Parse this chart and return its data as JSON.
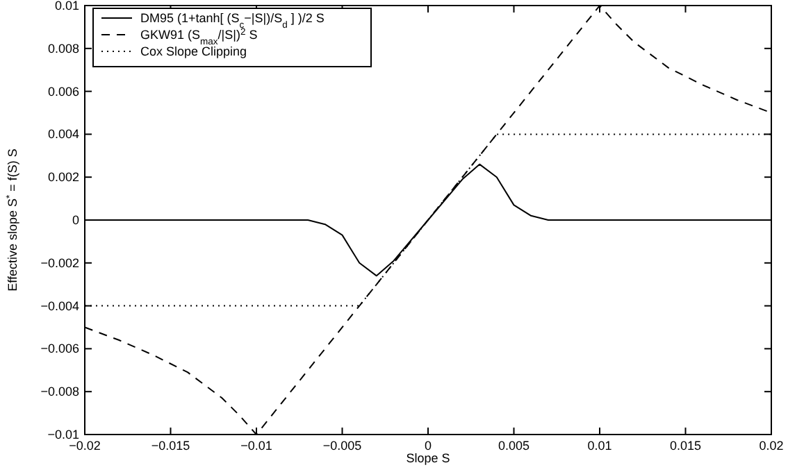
{
  "chart_data": {
    "type": "line",
    "xlabel": "Slope S",
    "ylabel": "Effective slope S$^{*}$ = f(S) S",
    "xlim": [
      -0.02,
      0.02
    ],
    "ylim": [
      -0.01,
      0.01
    ],
    "xticks": [
      -0.02,
      -0.015,
      -0.01,
      -0.005,
      0,
      0.005,
      0.01,
      0.015,
      0.02
    ],
    "yticks": [
      -0.01,
      -0.008,
      -0.006,
      -0.004,
      -0.002,
      0,
      0.002,
      0.004,
      0.006,
      0.008,
      0.01
    ],
    "grid": false,
    "legend": "top left",
    "series": [
      {
        "name": "DM95  (1+tanh[ (S$_{c}$−|S|)/S$_{d}$ ] )/2 S",
        "color": "#000000",
        "line_style": "solid",
        "x": [
          -0.02,
          -0.007,
          -0.006,
          -0.005,
          -0.004,
          -0.003,
          -0.002,
          0,
          0.002,
          0.003,
          0.004,
          0.005,
          0.006,
          0.007,
          0.02
        ],
        "values": [
          0,
          0,
          -0.0002,
          -0.0007,
          -0.002,
          -0.0026,
          -0.0019,
          0,
          0.0019,
          0.0026,
          0.002,
          0.0007,
          0.0002,
          0,
          0
        ]
      },
      {
        "name": "GKW91 (S$_{max}$/|S|)$^{2}$ S",
        "color": "#000000",
        "line_style": "dashed",
        "x": [
          -0.02,
          -0.018,
          -0.016,
          -0.014,
          -0.012,
          -0.011,
          -0.01,
          0.01,
          0.011,
          0.012,
          0.014,
          0.016,
          0.018,
          0.02
        ],
        "values": [
          -0.005,
          -0.0056,
          -0.0063,
          -0.0071,
          -0.0083,
          -0.0091,
          -0.01,
          0.01,
          0.0091,
          0.0083,
          0.0071,
          0.0063,
          0.0056,
          0.005
        ]
      },
      {
        "name": "Cox Slope Clipping",
        "color": "#000000",
        "line_style": "dotted",
        "x": [
          -0.02,
          -0.004,
          0.004,
          0.02
        ],
        "values": [
          -0.004,
          -0.004,
          0.004,
          0.004
        ]
      }
    ]
  }
}
